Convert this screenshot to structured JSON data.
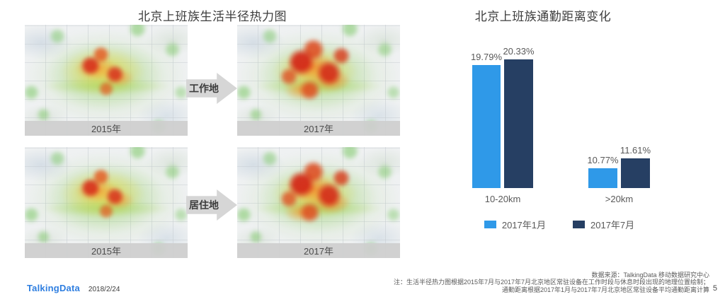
{
  "left_panel": {
    "title": "北京上班族生活半径热力图",
    "rows": [
      {
        "arrow_label": "工作地",
        "maps": [
          {
            "caption": "2015年"
          },
          {
            "caption": "2017年"
          }
        ]
      },
      {
        "arrow_label": "居住地",
        "maps": [
          {
            "caption": "2015年"
          },
          {
            "caption": "2017年"
          }
        ]
      }
    ]
  },
  "chart_data": {
    "type": "bar",
    "title": "北京上班族通勤距离变化",
    "categories": [
      "10-20km",
      ">20km"
    ],
    "series": [
      {
        "name": "2017年1月",
        "color": "#2f99e8",
        "values": [
          19.79,
          10.77
        ],
        "labels": [
          "19.79%",
          "10.77%"
        ]
      },
      {
        "name": "2017年7月",
        "color": "#263f63",
        "values": [
          20.33,
          11.61
        ],
        "labels": [
          "20.33%",
          "11.61%"
        ]
      }
    ],
    "ylim": [
      9,
      21
    ],
    "grid": false,
    "legend_position": "bottom",
    "value_suffix": "%"
  },
  "footer": {
    "logo": "TalkingData",
    "date": "2018/2/24",
    "notes": [
      "数据来源：TalkingData 移动数据研究中心",
      "注：生活半径热力图根据2015年7月与2017年7月北京地区常驻设备在工作时段与休息时段出现的地理位置绘制；",
      "通勤距离根据2017年1月与2017年7月北京地区常驻设备平均通勤距离计算"
    ],
    "page_number": "5"
  }
}
